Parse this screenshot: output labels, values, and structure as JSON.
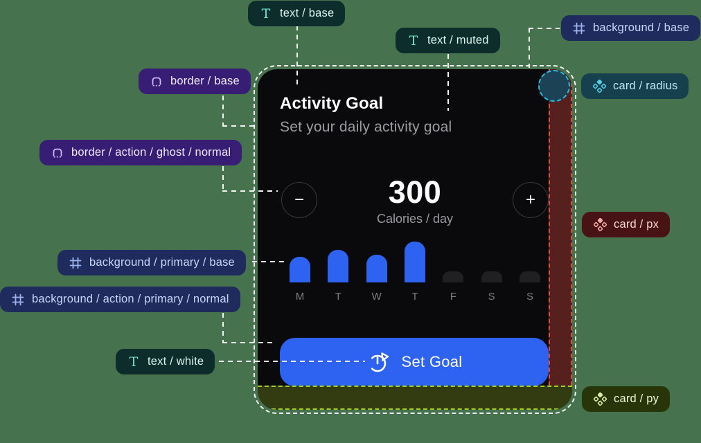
{
  "page": {
    "background_color": "#47724E"
  },
  "tokens": [
    {
      "label": "text / base",
      "icon": "text-token-icon"
    },
    {
      "label": "text / muted",
      "icon": "text-token-icon"
    },
    {
      "label": "background / base",
      "icon": "frame-token-icon"
    },
    {
      "label": "border / base",
      "icon": "border-token-icon"
    },
    {
      "label": "border / action / ghost / normal",
      "icon": "border-token-icon"
    },
    {
      "label": "background / primary / base",
      "icon": "frame-token-icon"
    },
    {
      "label": "background / action / primary / normal",
      "icon": "frame-token-icon"
    },
    {
      "label": "text / white",
      "icon": "text-token-icon"
    },
    {
      "label": "card / radius",
      "icon": "diamonds-token-icon"
    },
    {
      "label": "card / px",
      "icon": "diamonds-token-icon"
    },
    {
      "label": "card / py",
      "icon": "diamonds-token-icon"
    }
  ],
  "card": {
    "title": "Activity Goal",
    "subtitle": "Set your daily activity goal",
    "stepper": {
      "decrease": "−",
      "value": "300",
      "unit": "Calories / day",
      "increase": "+"
    },
    "chart": {
      "type": "bar",
      "days": [
        "M",
        "T",
        "W",
        "T",
        "F",
        "S",
        "S"
      ],
      "heights": [
        37,
        47,
        40,
        59,
        16,
        16,
        16
      ],
      "active": [
        true,
        true,
        true,
        true,
        false,
        false,
        false
      ]
    },
    "button": {
      "label": "Set Goal"
    }
  },
  "colors": {
    "accent_blue": "#2E63F1",
    "card_background": "#0A0A0C",
    "muted_text": "#9B9BA1",
    "px_highlight": "#56201E",
    "px_border": "#E8483A",
    "py_highlight": "#333C10",
    "py_border": "#A2CE26",
    "radius_fill": "#1B4255",
    "radius_border": "#2EB8DB"
  }
}
